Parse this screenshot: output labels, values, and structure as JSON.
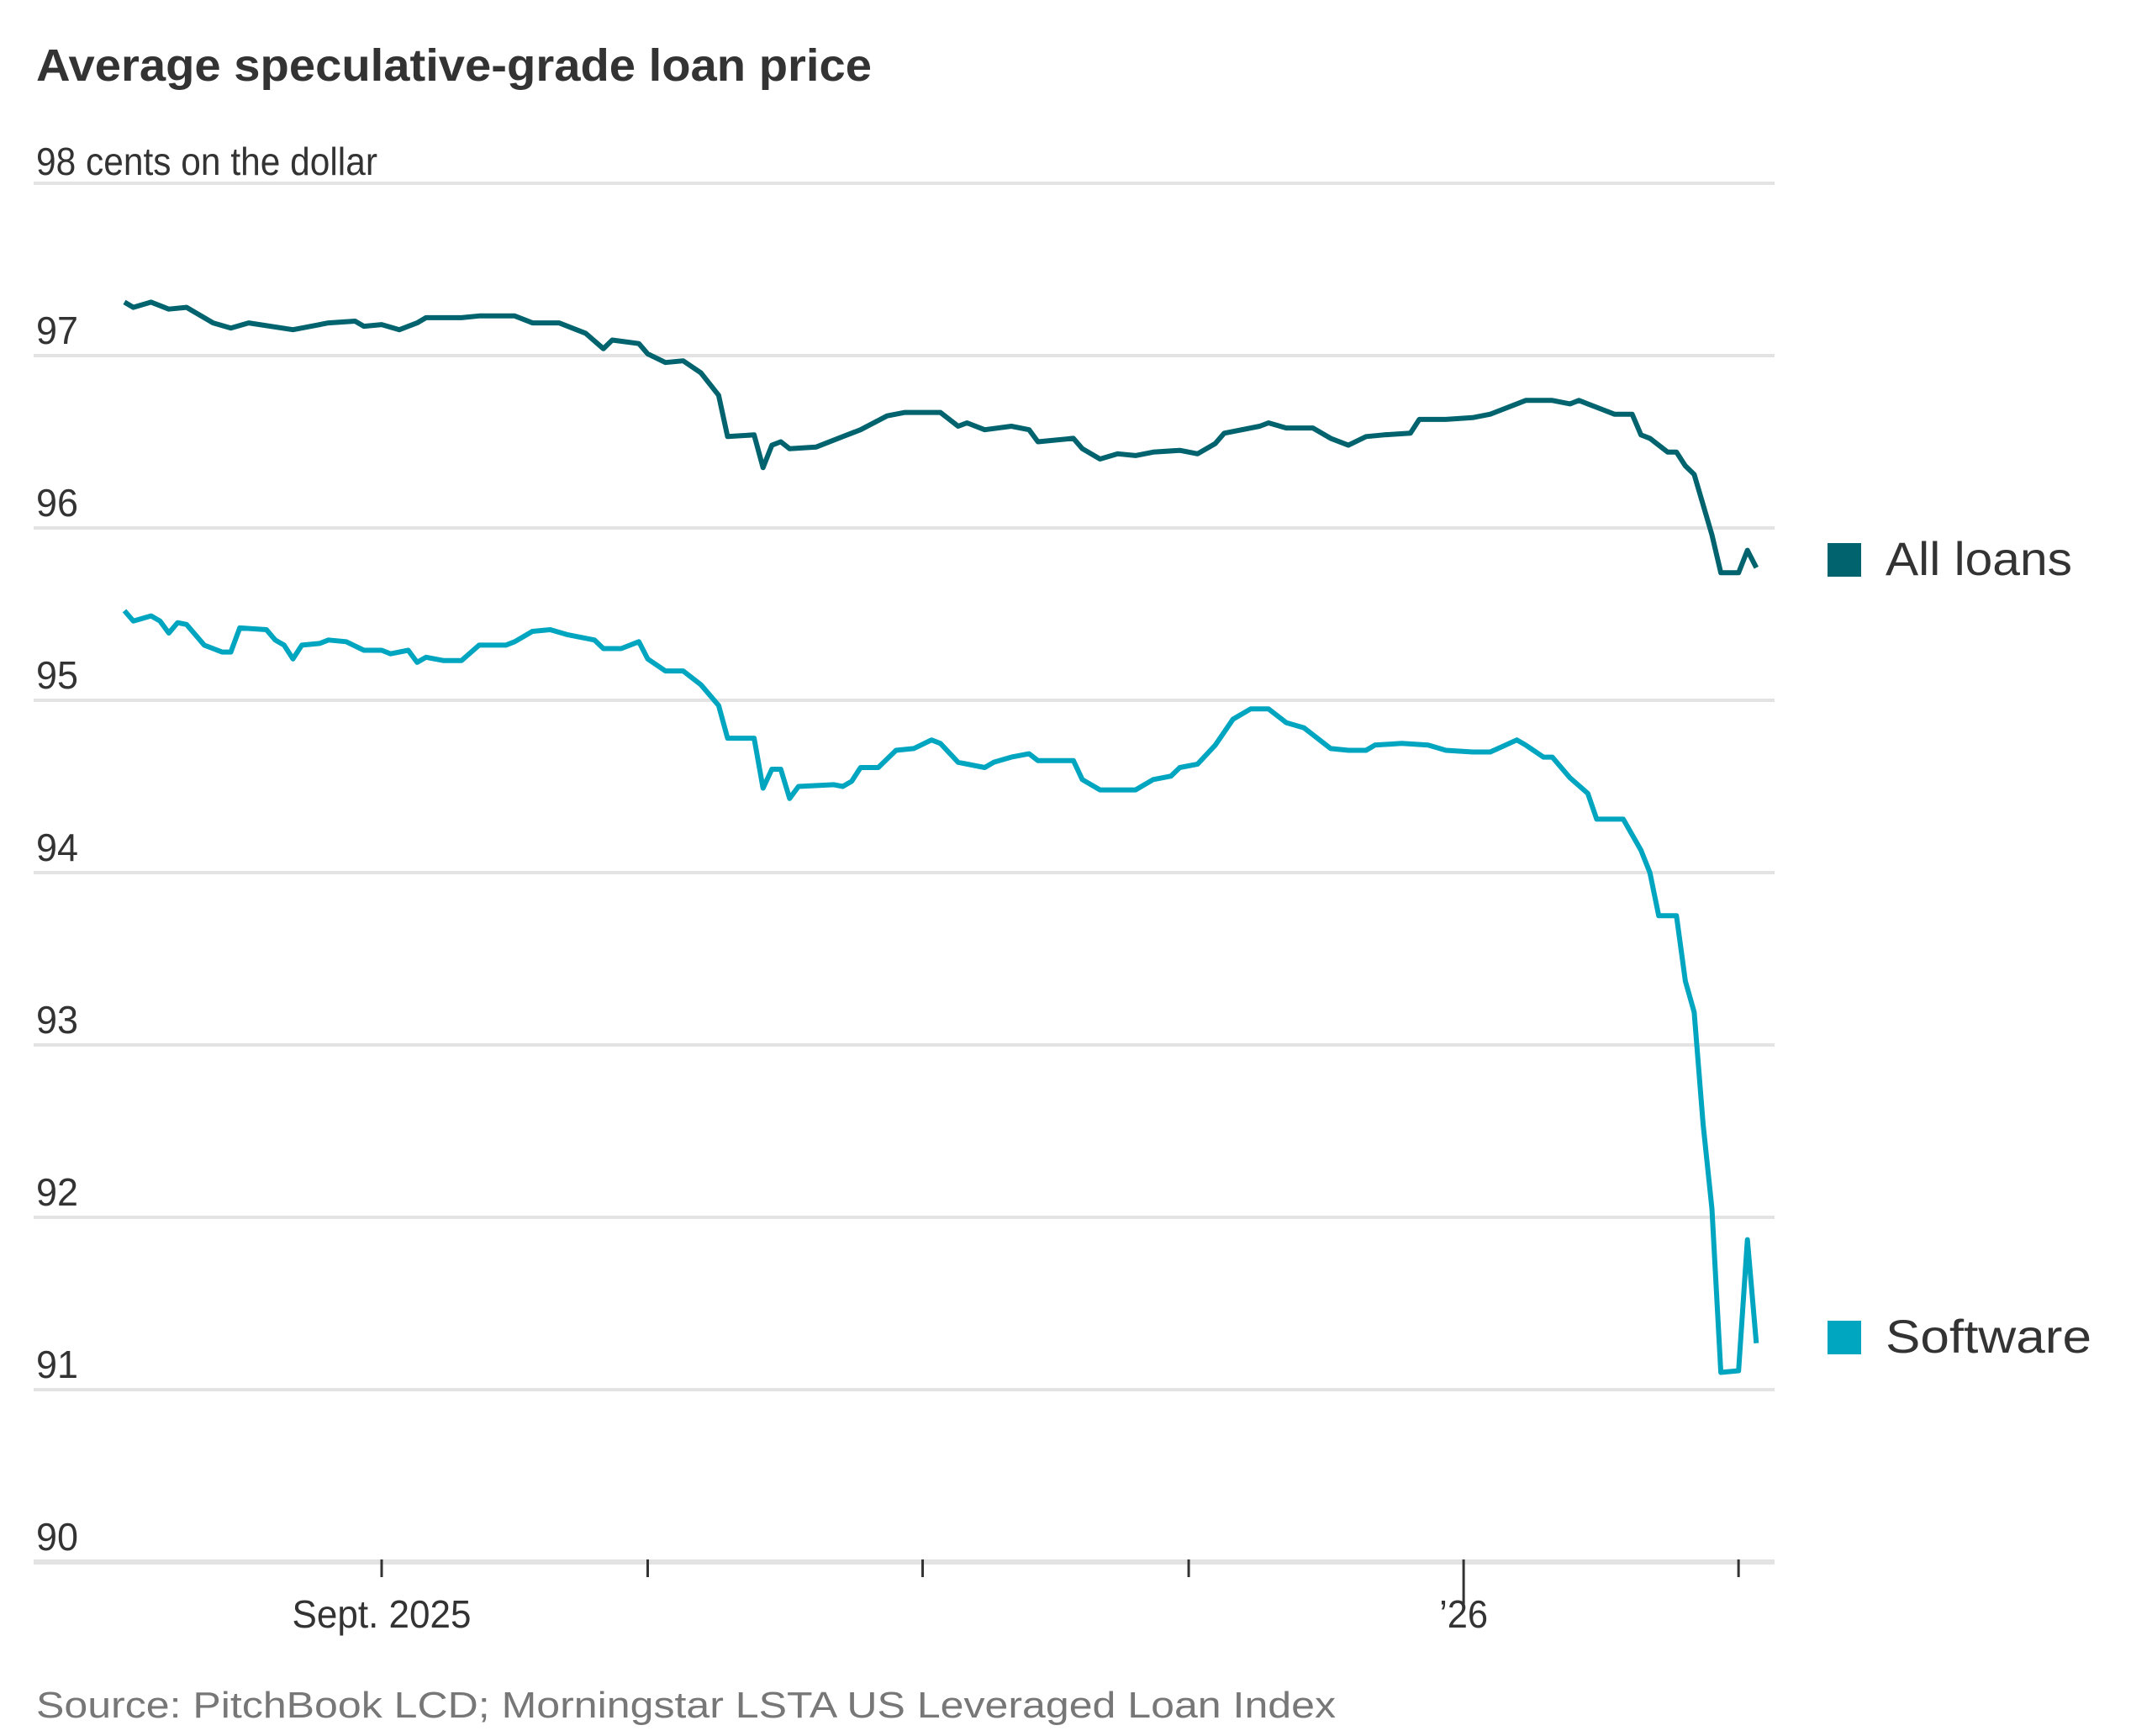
{
  "chart_data": {
    "type": "line",
    "title": "Average speculative-grade loan price",
    "ylabel": "cents on the dollar",
    "y_top_label": "98 cents on the dollar",
    "ylim": [
      90,
      98
    ],
    "y_ticks": [
      "97",
      "96",
      "95",
      "94",
      "93",
      "92",
      "91",
      "90"
    ],
    "x_ticks": [
      "2025-09-01",
      "2025-10-01",
      "2025-11-01",
      "2025-12-01",
      "2026-01-01",
      "2026-02-01"
    ],
    "x_tick_labels": [
      {
        "date": "2025-09-01",
        "label": "Sept. 2025"
      },
      {
        "date": "2026-01-01",
        "label": "’26"
      }
    ],
    "xlim": [
      "2025-08-03",
      "2026-02-03"
    ],
    "grid": true,
    "legend_placement": "right, at line ends",
    "source": "Source: PitchBook LCD; Morningstar LSTA US Leveraged Loan Index",
    "series": [
      {
        "name": "All loans",
        "color": "#00636e",
        "points": [
          [
            "2025-08-03",
            97.31
          ],
          [
            "2025-08-04",
            97.28
          ],
          [
            "2025-08-06",
            97.31
          ],
          [
            "2025-08-08",
            97.27
          ],
          [
            "2025-08-10",
            97.28
          ],
          [
            "2025-08-13",
            97.19
          ],
          [
            "2025-08-15",
            97.16
          ],
          [
            "2025-08-17",
            97.19
          ],
          [
            "2025-08-22",
            97.15
          ],
          [
            "2025-08-26",
            97.19
          ],
          [
            "2025-08-29",
            97.2
          ],
          [
            "2025-08-30",
            97.17
          ],
          [
            "2025-09-01",
            97.18
          ],
          [
            "2025-09-03",
            97.15
          ],
          [
            "2025-09-05",
            97.19
          ],
          [
            "2025-09-06",
            97.22
          ],
          [
            "2025-09-10",
            97.22
          ],
          [
            "2025-09-12",
            97.23
          ],
          [
            "2025-09-16",
            97.23
          ],
          [
            "2025-09-18",
            97.19
          ],
          [
            "2025-09-21",
            97.19
          ],
          [
            "2025-09-24",
            97.13
          ],
          [
            "2025-09-26",
            97.04
          ],
          [
            "2025-09-27",
            97.09
          ],
          [
            "2025-09-30",
            97.07
          ],
          [
            "2025-10-01",
            97.01
          ],
          [
            "2025-10-03",
            96.96
          ],
          [
            "2025-10-05",
            96.97
          ],
          [
            "2025-10-07",
            96.9
          ],
          [
            "2025-10-09",
            96.77
          ],
          [
            "2025-10-10",
            96.53
          ],
          [
            "2025-10-13",
            96.54
          ],
          [
            "2025-10-14",
            96.35
          ],
          [
            "2025-10-15",
            96.48
          ],
          [
            "2025-10-16",
            96.5
          ],
          [
            "2025-10-17",
            96.46
          ],
          [
            "2025-10-20",
            96.47
          ],
          [
            "2025-10-23",
            96.53
          ],
          [
            "2025-10-25",
            96.57
          ],
          [
            "2025-10-28",
            96.65
          ],
          [
            "2025-10-30",
            96.67
          ],
          [
            "2025-11-03",
            96.67
          ],
          [
            "2025-11-05",
            96.59
          ],
          [
            "2025-11-06",
            96.61
          ],
          [
            "2025-11-08",
            96.57
          ],
          [
            "2025-11-11",
            96.59
          ],
          [
            "2025-11-13",
            96.57
          ],
          [
            "2025-11-14",
            96.5
          ],
          [
            "2025-11-18",
            96.52
          ],
          [
            "2025-11-19",
            96.46
          ],
          [
            "2025-11-21",
            96.4
          ],
          [
            "2025-11-23",
            96.43
          ],
          [
            "2025-11-25",
            96.42
          ],
          [
            "2025-11-27",
            96.44
          ],
          [
            "2025-11-30",
            96.45
          ],
          [
            "2025-12-02",
            96.43
          ],
          [
            "2025-12-04",
            96.49
          ],
          [
            "2025-12-05",
            96.55
          ],
          [
            "2025-12-09",
            96.59
          ],
          [
            "2025-12-10",
            96.61
          ],
          [
            "2025-12-12",
            96.58
          ],
          [
            "2025-12-15",
            96.58
          ],
          [
            "2025-12-17",
            96.52
          ],
          [
            "2025-12-19",
            96.48
          ],
          [
            "2025-12-21",
            96.53
          ],
          [
            "2025-12-23",
            96.54
          ],
          [
            "2025-12-26",
            96.55
          ],
          [
            "2025-12-27",
            96.63
          ],
          [
            "2025-12-30",
            96.63
          ],
          [
            "2026-01-02",
            96.64
          ],
          [
            "2026-01-04",
            96.66
          ],
          [
            "2026-01-07",
            96.72
          ],
          [
            "2026-01-08",
            96.74
          ],
          [
            "2026-01-11",
            96.74
          ],
          [
            "2026-01-13",
            96.72
          ],
          [
            "2026-01-14",
            96.74
          ],
          [
            "2026-01-15",
            96.72
          ],
          [
            "2026-01-18",
            96.66
          ],
          [
            "2026-01-20",
            96.66
          ],
          [
            "2026-01-21",
            96.54
          ],
          [
            "2026-01-22",
            96.52
          ],
          [
            "2026-01-24",
            96.44
          ],
          [
            "2026-01-25",
            96.44
          ],
          [
            "2026-01-26",
            96.36
          ],
          [
            "2026-01-27",
            96.31
          ],
          [
            "2026-01-29",
            95.96
          ],
          [
            "2026-01-30",
            95.74
          ],
          [
            "2026-02-01",
            95.74
          ],
          [
            "2026-02-02",
            95.87
          ],
          [
            "2026-02-03",
            95.77
          ]
        ]
      },
      {
        "name": "Software",
        "color": "#00a5c0",
        "points": [
          [
            "2025-08-03",
            95.52
          ],
          [
            "2025-08-04",
            95.46
          ],
          [
            "2025-08-06",
            95.49
          ],
          [
            "2025-08-07",
            95.46
          ],
          [
            "2025-08-08",
            95.39
          ],
          [
            "2025-08-09",
            95.45
          ],
          [
            "2025-08-10",
            95.44
          ],
          [
            "2025-08-12",
            95.32
          ],
          [
            "2025-08-14",
            95.28
          ],
          [
            "2025-08-15",
            95.28
          ],
          [
            "2025-08-16",
            95.42
          ],
          [
            "2025-08-19",
            95.41
          ],
          [
            "2025-08-20",
            95.35
          ],
          [
            "2025-08-21",
            95.32
          ],
          [
            "2025-08-22",
            95.24
          ],
          [
            "2025-08-23",
            95.32
          ],
          [
            "2025-08-25",
            95.33
          ],
          [
            "2025-08-26",
            95.35
          ],
          [
            "2025-08-28",
            95.34
          ],
          [
            "2025-08-30",
            95.29
          ],
          [
            "2025-09-01",
            95.29
          ],
          [
            "2025-09-02",
            95.27
          ],
          [
            "2025-09-04",
            95.29
          ],
          [
            "2025-09-05",
            95.22
          ],
          [
            "2025-09-06",
            95.25
          ],
          [
            "2025-09-08",
            95.23
          ],
          [
            "2025-09-10",
            95.23
          ],
          [
            "2025-09-12",
            95.32
          ],
          [
            "2025-09-15",
            95.32
          ],
          [
            "2025-09-16",
            95.34
          ],
          [
            "2025-09-18",
            95.4
          ],
          [
            "2025-09-20",
            95.41
          ],
          [
            "2025-09-22",
            95.38
          ],
          [
            "2025-09-25",
            95.35
          ],
          [
            "2025-09-26",
            95.3
          ],
          [
            "2025-09-28",
            95.3
          ],
          [
            "2025-09-30",
            95.34
          ],
          [
            "2025-10-01",
            95.24
          ],
          [
            "2025-10-03",
            95.17
          ],
          [
            "2025-10-05",
            95.17
          ],
          [
            "2025-10-07",
            95.09
          ],
          [
            "2025-10-09",
            94.97
          ],
          [
            "2025-10-10",
            94.78
          ],
          [
            "2025-10-13",
            94.78
          ],
          [
            "2025-10-14",
            94.49
          ],
          [
            "2025-10-15",
            94.6
          ],
          [
            "2025-10-16",
            94.6
          ],
          [
            "2025-10-17",
            94.43
          ],
          [
            "2025-10-18",
            94.5
          ],
          [
            "2025-10-22",
            94.51
          ],
          [
            "2025-10-23",
            94.5
          ],
          [
            "2025-10-24",
            94.53
          ],
          [
            "2025-10-25",
            94.61
          ],
          [
            "2025-10-27",
            94.61
          ],
          [
            "2025-10-29",
            94.71
          ],
          [
            "2025-10-31",
            94.72
          ],
          [
            "2025-11-02",
            94.77
          ],
          [
            "2025-11-03",
            94.75
          ],
          [
            "2025-11-05",
            94.64
          ],
          [
            "2025-11-08",
            94.61
          ],
          [
            "2025-11-09",
            94.64
          ],
          [
            "2025-11-11",
            94.67
          ],
          [
            "2025-11-13",
            94.69
          ],
          [
            "2025-11-14",
            94.65
          ],
          [
            "2025-11-18",
            94.65
          ],
          [
            "2025-11-19",
            94.54
          ],
          [
            "2025-11-21",
            94.48
          ],
          [
            "2025-11-25",
            94.48
          ],
          [
            "2025-11-27",
            94.54
          ],
          [
            "2025-11-29",
            94.56
          ],
          [
            "2025-11-30",
            94.61
          ],
          [
            "2025-12-02",
            94.63
          ],
          [
            "2025-12-04",
            94.74
          ],
          [
            "2025-12-06",
            94.89
          ],
          [
            "2025-12-08",
            94.95
          ],
          [
            "2025-12-10",
            94.95
          ],
          [
            "2025-12-12",
            94.87
          ],
          [
            "2025-12-14",
            94.84
          ],
          [
            "2025-12-17",
            94.72
          ],
          [
            "2025-12-19",
            94.71
          ],
          [
            "2025-12-21",
            94.71
          ],
          [
            "2025-12-22",
            94.74
          ],
          [
            "2025-12-25",
            94.75
          ],
          [
            "2025-12-28",
            94.74
          ],
          [
            "2025-12-30",
            94.71
          ],
          [
            "2026-01-02",
            94.7
          ],
          [
            "2026-01-04",
            94.7
          ],
          [
            "2026-01-07",
            94.77
          ],
          [
            "2026-01-08",
            94.74
          ],
          [
            "2026-01-10",
            94.67
          ],
          [
            "2026-01-11",
            94.67
          ],
          [
            "2026-01-13",
            94.55
          ],
          [
            "2026-01-15",
            94.46
          ],
          [
            "2026-01-16",
            94.31
          ],
          [
            "2026-01-19",
            94.31
          ],
          [
            "2026-01-21",
            94.13
          ],
          [
            "2026-01-22",
            94.0
          ],
          [
            "2026-01-23",
            93.75
          ],
          [
            "2026-01-25",
            93.75
          ],
          [
            "2026-01-26",
            93.37
          ],
          [
            "2026-01-27",
            93.19
          ],
          [
            "2026-01-28",
            92.54
          ],
          [
            "2026-01-29",
            92.05
          ],
          [
            "2026-01-30",
            91.1
          ],
          [
            "2026-02-01",
            91.11
          ],
          [
            "2026-02-02",
            91.87
          ],
          [
            "2026-02-03",
            91.27
          ]
        ]
      }
    ]
  }
}
